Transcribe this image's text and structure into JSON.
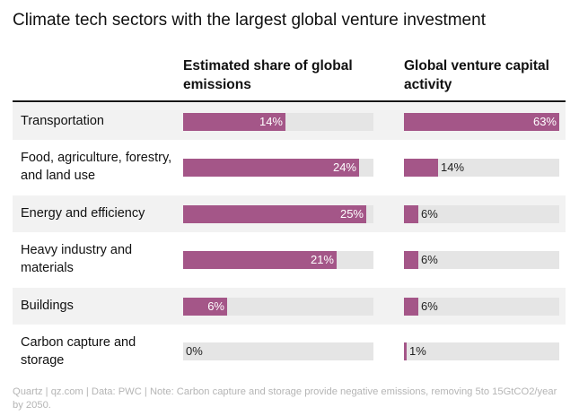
{
  "chart_data": {
    "type": "bar",
    "title": "Climate tech sectors with the largest global venture investment",
    "categories": [
      "Transportation",
      "Food, agriculture, forestry, and land use",
      "Energy and efficiency",
      "Heavy industry and materials",
      "Buildings",
      "Carbon capture and storage"
    ],
    "series": [
      {
        "name": "Estimated share of global emissions",
        "values": [
          14,
          24,
          25,
          21,
          6,
          0
        ],
        "labels": [
          "14%",
          "24%",
          "25%",
          "21%",
          "6%",
          "0%"
        ],
        "xlim": [
          0,
          26
        ]
      },
      {
        "name": "Global venture capital activity",
        "values": [
          63,
          14,
          6,
          6,
          6,
          1
        ],
        "labels": [
          "63%",
          "14%",
          "6%",
          "6%",
          "6%",
          "1%"
        ],
        "xlim": [
          0,
          63
        ]
      }
    ],
    "bar_color": "#a45688",
    "track_color": "#e5e5e5",
    "footer": "Quartz | qz.com | Data: PWC | Note: Carbon capture and storage provide negative emissions, removing 5to 15GtCO2/year by 2050."
  }
}
